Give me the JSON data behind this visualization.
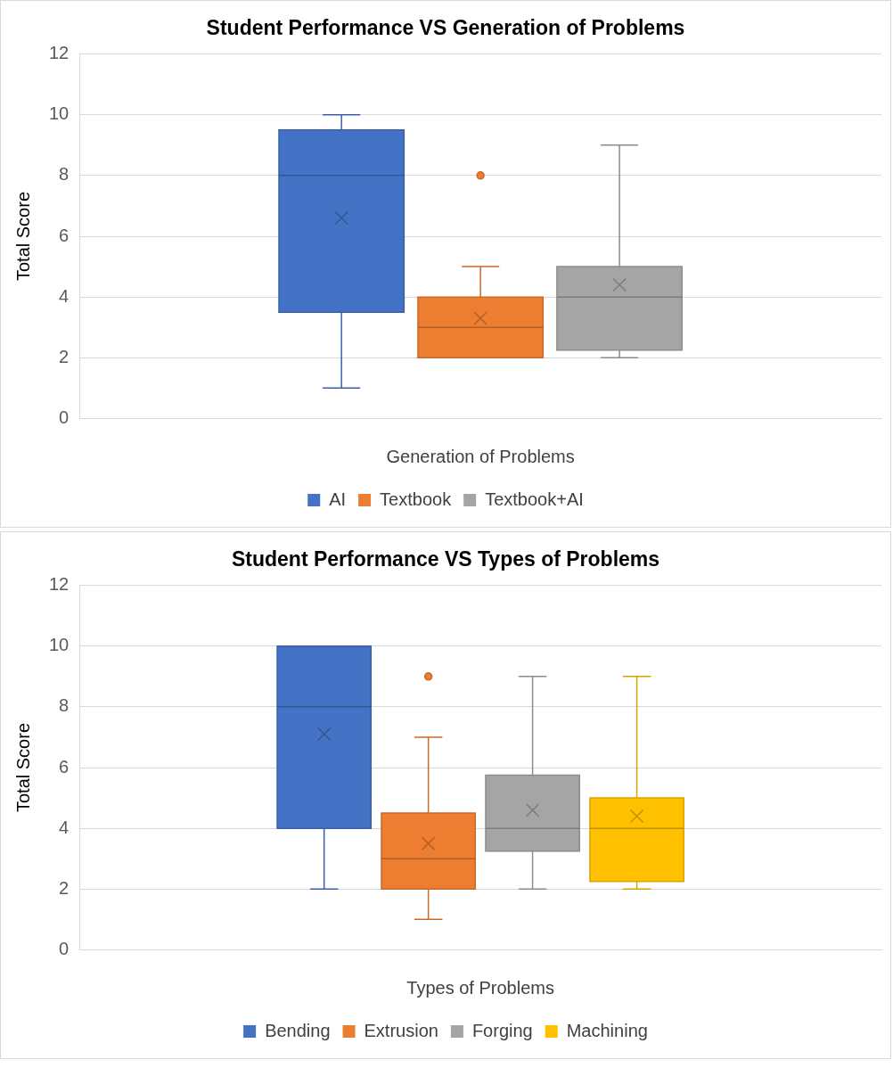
{
  "chart_data": [
    {
      "type": "box",
      "title": "Student Performance VS Generation of Problems",
      "xlabel": "Generation of Problems",
      "ylabel": "Total Score",
      "categories": [
        null
      ],
      "ylim": [
        0,
        12
      ],
      "yticks": [
        0,
        2,
        4,
        6,
        8,
        10,
        12
      ],
      "grid": "y",
      "legend": "bottom",
      "series": [
        {
          "name": "AI",
          "color": "#4472c4",
          "boxes": [
            {
              "low": 1,
              "q1": 3.5,
              "median": 8,
              "q3": 9.5,
              "high": 10,
              "mean": 6.6
            }
          ]
        },
        {
          "name": "Textbook",
          "color": "#ed7d31",
          "boxes": [
            {
              "low": 2,
              "q1": 2,
              "median": 3,
              "q3": 4,
              "high": 5,
              "mean": 3.3,
              "outliers": [
                8
              ]
            }
          ]
        },
        {
          "name": "Textbook+AI",
          "color": "#a5a5a5",
          "boxes": [
            {
              "low": 2,
              "q1": 2.25,
              "median": 4,
              "q3": 5,
              "high": 9,
              "mean": 4.4
            }
          ]
        }
      ]
    },
    {
      "type": "box",
      "title": "Student Performance VS Types of Problems",
      "xlabel": "Types of Problems",
      "ylabel": "Total Score",
      "categories": [
        null
      ],
      "ylim": [
        0,
        12
      ],
      "yticks": [
        0,
        2,
        4,
        6,
        8,
        10,
        12
      ],
      "grid": "y",
      "legend": "bottom",
      "series": [
        {
          "name": "Bending",
          "color": "#4472c4",
          "boxes": [
            {
              "low": 2,
              "q1": 4,
              "median": 8,
              "q3": 10,
              "high": 10,
              "mean": 7.1
            }
          ]
        },
        {
          "name": "Extrusion",
          "color": "#ed7d31",
          "boxes": [
            {
              "low": 1,
              "q1": 2,
              "median": 3,
              "q3": 4.5,
              "high": 7,
              "mean": 3.5,
              "outliers": [
                9
              ]
            }
          ]
        },
        {
          "name": "Forging",
          "color": "#a5a5a5",
          "boxes": [
            {
              "low": 2,
              "q1": 3.25,
              "median": 4,
              "q3": 5.75,
              "high": 9,
              "mean": 4.6
            }
          ]
        },
        {
          "name": "Machining",
          "color": "#ffc000",
          "boxes": [
            {
              "low": 2,
              "q1": 2.25,
              "median": 4,
              "q3": 5,
              "high": 9,
              "mean": 4.4
            }
          ]
        }
      ]
    }
  ]
}
